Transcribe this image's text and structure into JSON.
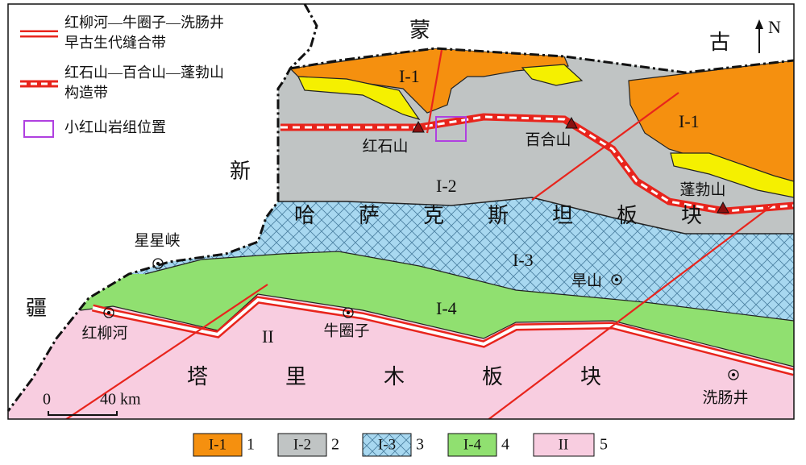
{
  "legend": [
    {
      "lines": [
        "红柳河—牛圈子—洗肠井",
        "早古生代缝合带"
      ]
    },
    {
      "lines": [
        "红石山—百合山—蓬勃山",
        "构造带"
      ]
    },
    {
      "lines": [
        "小红山岩组位置"
      ]
    }
  ],
  "north": "N",
  "region_names": [
    "蒙",
    "古",
    "新",
    "疆"
  ],
  "plates": [
    "哈萨克斯坦板块",
    "塔里木板块"
  ],
  "units": [
    "I-1",
    "I-1",
    "I-2",
    "I-3",
    "I-4",
    "II"
  ],
  "sites": [
    "红石山",
    "百合山",
    "蓬勃山",
    "星星峡",
    "旱山",
    "红柳河",
    "牛圈子",
    "洗肠井"
  ],
  "scale": {
    "start": "0",
    "end": "40 km"
  },
  "key": [
    {
      "code": "I-1",
      "number": "1"
    },
    {
      "code": "I-2",
      "number": "2"
    },
    {
      "code": "I-3",
      "number": "3"
    },
    {
      "code": "I-4",
      "number": "4"
    },
    {
      "code": "II",
      "number": "5"
    }
  ]
}
